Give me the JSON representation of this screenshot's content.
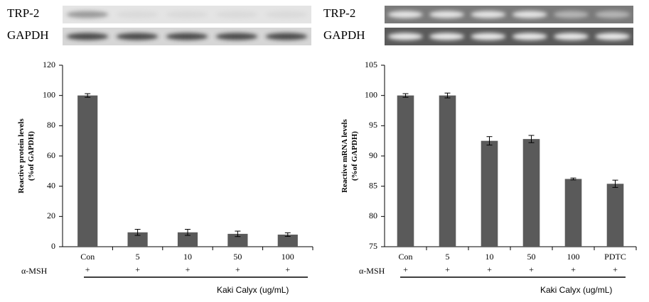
{
  "chart_data": [
    {
      "type": "bar",
      "blot_labels": [
        "TRP-2",
        "GAPDH"
      ],
      "ylabel": [
        "Reactive protein levels",
        "(%of GAPDH)"
      ],
      "categories": [
        "Con",
        "5",
        "10",
        "50",
        "100"
      ],
      "series": [
        {
          "color": "#5a5a5a",
          "values": [
            100,
            9.5,
            9.5,
            8.5,
            8
          ],
          "errors": [
            1.2,
            2,
            2,
            1.8,
            1.2
          ]
        }
      ],
      "ylim": [
        0,
        120
      ],
      "yticks": [
        0,
        20,
        40,
        60,
        80,
        100,
        120
      ],
      "treatment_label": "α-MSH",
      "treatment_marks": [
        "+",
        "+",
        "+",
        "+",
        "+"
      ],
      "group_label": "Kaki Calyx (ug/mL)"
    },
    {
      "type": "bar",
      "blot_labels": [
        "TRP-2",
        "GAPDH"
      ],
      "ylabel": [
        "Reactive mRNA levels",
        "(%of GAPDH)"
      ],
      "categories": [
        "Con",
        "5",
        "10",
        "50",
        "100",
        "PDTC"
      ],
      "series": [
        {
          "color": "#5a5a5a",
          "values": [
            100,
            100,
            92.5,
            92.8,
            86.2,
            85.4
          ],
          "errors": [
            0.3,
            0.4,
            0.7,
            0.6,
            0.15,
            0.6
          ]
        }
      ],
      "ylim": [
        75,
        105
      ],
      "yticks": [
        75,
        80,
        85,
        90,
        95,
        100,
        105
      ],
      "treatment_label": "α-MSH",
      "treatment_marks": [
        "+",
        "+",
        "+",
        "+",
        "+",
        "+"
      ],
      "group_label": "Kaki Calyx (ug/mL)"
    }
  ]
}
